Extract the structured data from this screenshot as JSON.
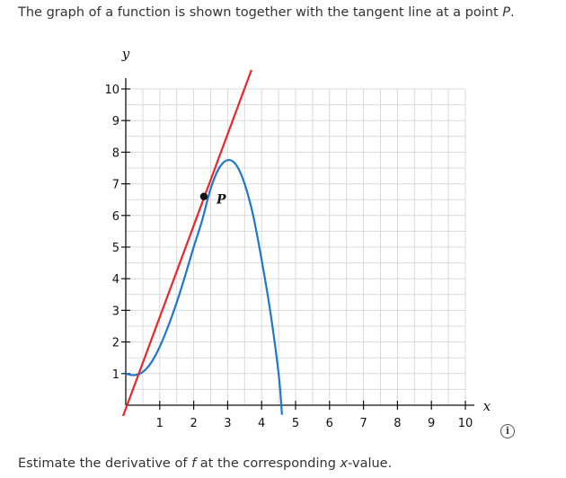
{
  "question": {
    "prompt_pre": "The graph of a function is shown together with the tangent line at a point ",
    "prompt_point": "P",
    "prompt_post": ".",
    "followup_pre": "Estimate the derivative of ",
    "followup_f": "f",
    "followup_mid": " at the corresponding ",
    "followup_x": "x",
    "followup_post": "-value.",
    "info_icon": "i"
  },
  "chart_data": {
    "type": "line",
    "xlabel": "x",
    "ylabel": "y",
    "xlim": [
      0,
      10
    ],
    "ylim": [
      0,
      10
    ],
    "x_ticks": [
      1,
      2,
      3,
      4,
      5,
      6,
      7,
      8,
      9,
      10
    ],
    "y_ticks": [
      1,
      2,
      3,
      4,
      5,
      6,
      7,
      8,
      9,
      10
    ],
    "grid": true,
    "series": [
      {
        "color": "#1f77c9",
        "points": [
          [
            0,
            1.0
          ],
          [
            0.25,
            0.95
          ],
          [
            0.5,
            1.05
          ],
          [
            0.75,
            1.35
          ],
          [
            1.0,
            1.85
          ],
          [
            1.25,
            2.5
          ],
          [
            1.5,
            3.25
          ],
          [
            1.75,
            4.1
          ],
          [
            2.0,
            5.0
          ],
          [
            2.25,
            5.85
          ],
          [
            2.5,
            6.85
          ],
          [
            2.75,
            7.5
          ],
          [
            3.0,
            7.75
          ],
          [
            3.25,
            7.6
          ],
          [
            3.5,
            7.0
          ],
          [
            3.75,
            6.0
          ],
          [
            4.0,
            4.6
          ],
          [
            4.25,
            3.0
          ],
          [
            4.5,
            1.0
          ],
          [
            4.6,
            -0.3
          ]
        ]
      },
      {
        "color": "#e8262c",
        "points": [
          [
            -0.1,
            -0.4
          ],
          [
            3.7,
            10.6
          ]
        ]
      }
    ],
    "point": {
      "label": "P",
      "x": 2.3,
      "y": 6.6
    }
  }
}
